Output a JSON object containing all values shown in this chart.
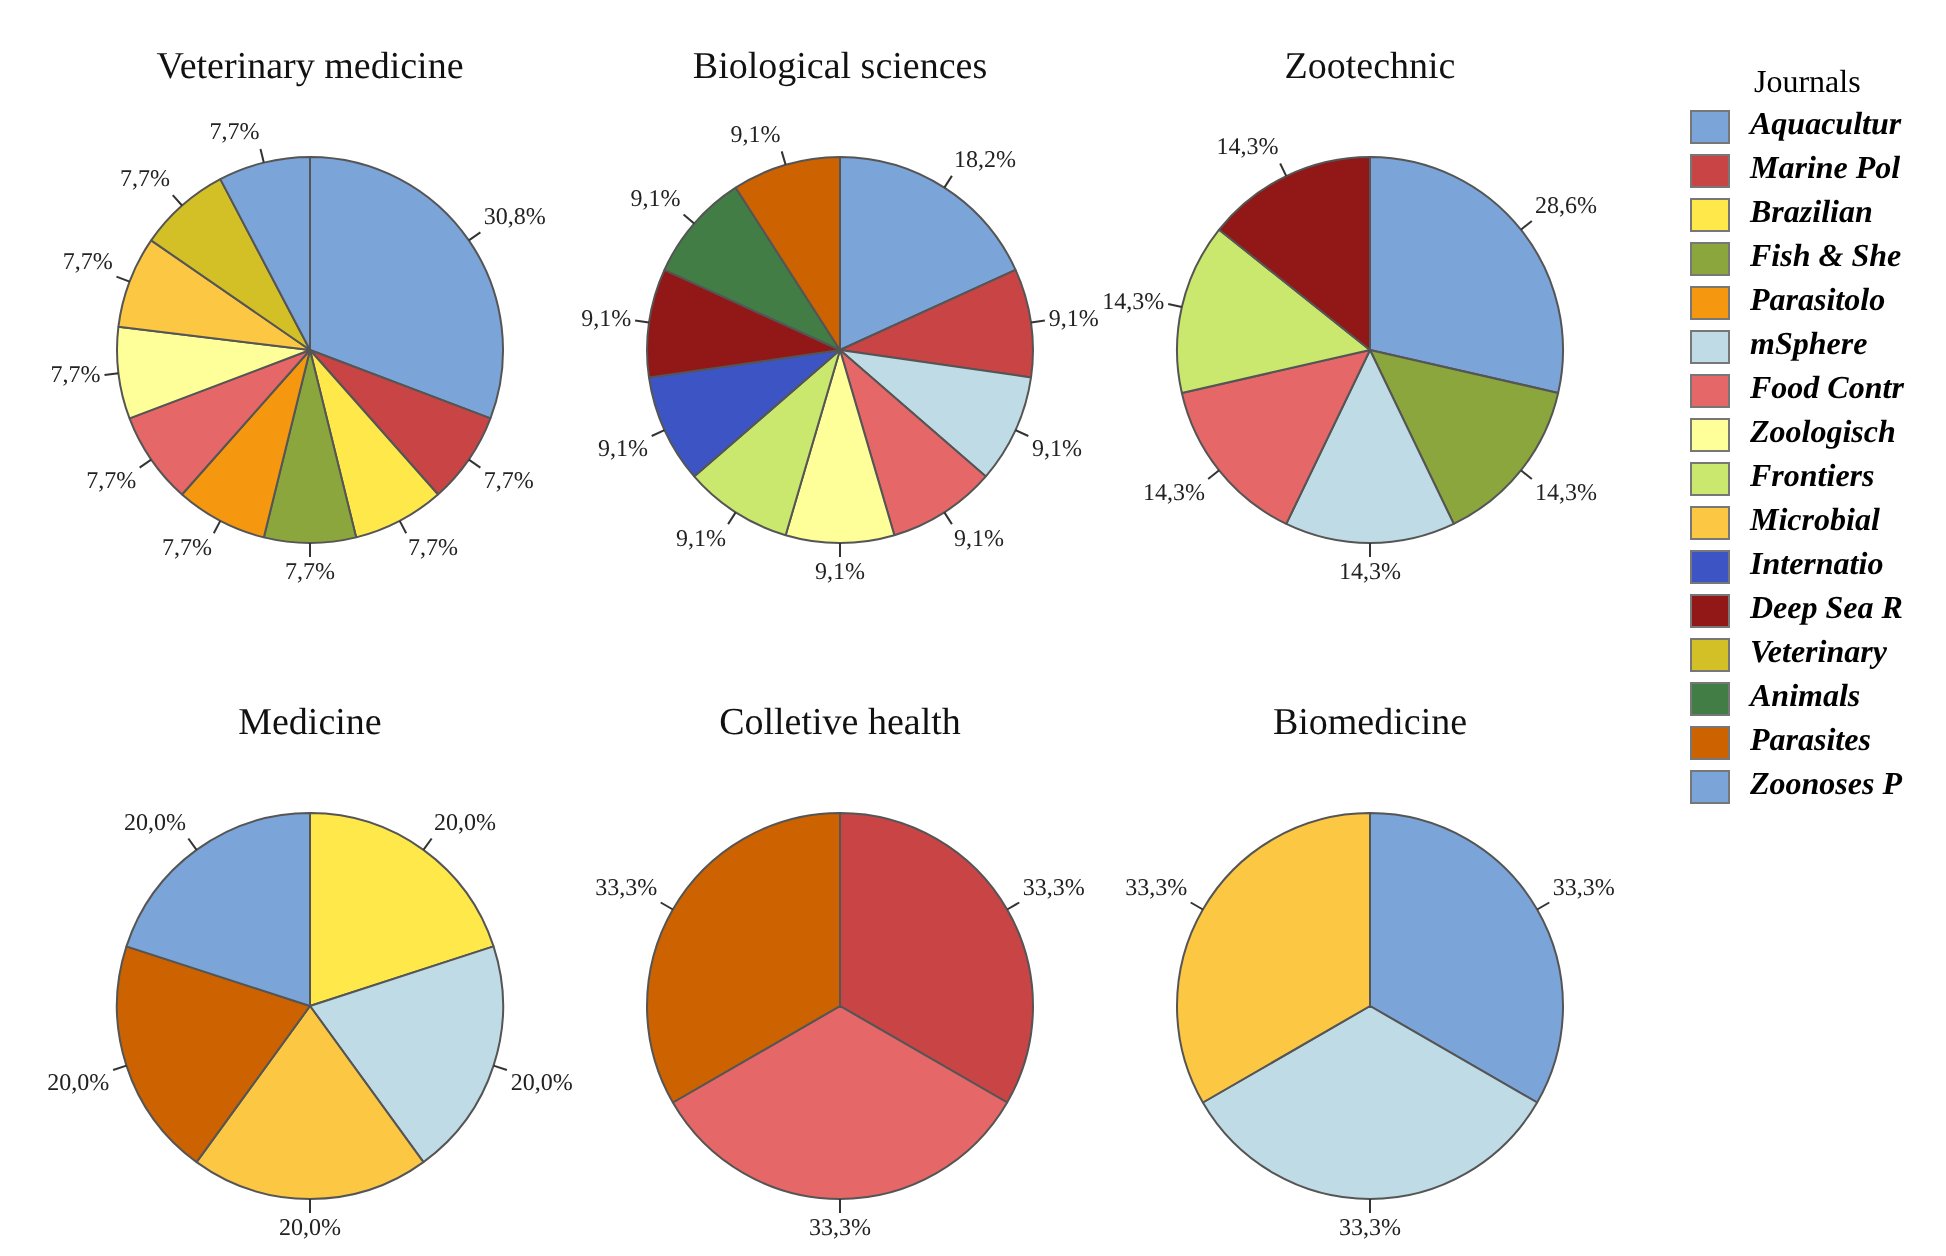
{
  "chart_data": [
    {
      "type": "pie",
      "title": "Veterinary medicine",
      "legend": false,
      "categories": [
        null,
        null,
        null,
        null,
        null,
        null,
        null,
        null,
        null,
        null,
        null,
        null,
        null,
        null,
        null,
        null
      ],
      "colors": [
        "#7ba4d8",
        "#c94545",
        "#ffe94a",
        "#8aa63d",
        "#f5980f",
        "#bedbe6",
        "#e66767",
        "#ffff99",
        "#cbe86e",
        "#fcc844",
        "#3d55c4",
        "#921717",
        "#d3c026",
        "#417d45",
        "#cc6300",
        "#7ba4d8"
      ],
      "values": [
        30.8,
        7.7,
        7.7,
        7.7,
        7.7,
        null,
        7.7,
        7.7,
        null,
        7.7,
        null,
        null,
        7.7,
        null,
        null,
        7.7
      ],
      "value_labels": [
        "30,8%",
        "7,7%",
        "7,7%",
        "7,7%",
        "7,7%",
        null,
        "7,7%",
        "7,7%",
        null,
        "7,7%",
        null,
        null,
        "7,7%",
        null,
        null,
        "7,7%"
      ]
    },
    {
      "type": "pie",
      "title": "Biological sciences",
      "legend": false,
      "categories": [
        null,
        null,
        null,
        null,
        null,
        null,
        null,
        null,
        null,
        null,
        null,
        null,
        null,
        null,
        null,
        null
      ],
      "colors": [
        "#7ba4d8",
        "#c94545",
        "#ffe94a",
        "#8aa63d",
        "#f5980f",
        "#bedbe6",
        "#e66767",
        "#ffff99",
        "#cbe86e",
        "#fcc844",
        "#3d55c4",
        "#921717",
        "#d3c026",
        "#417d45",
        "#cc6300",
        "#7ba4d8"
      ],
      "values": [
        18.2,
        9.1,
        null,
        null,
        null,
        9.1,
        9.1,
        9.1,
        9.1,
        null,
        9.1,
        9.1,
        null,
        9.1,
        9.1,
        null
      ],
      "value_labels": [
        "18,2%",
        "9,1%",
        null,
        null,
        null,
        "9,1%",
        "9,1%",
        "9,1%",
        "9,1%",
        null,
        "9,1%",
        "9,1%",
        null,
        "9,1%",
        "9,1%",
        null
      ]
    },
    {
      "type": "pie",
      "title": "Zootechnic",
      "legend": "right",
      "legend_title": "Journals",
      "categories": [
        "Aquacultur",
        "Marine Pol",
        "Brazilian",
        "Fish & She",
        "Parasitolo",
        "mSphere",
        "Food Contr",
        "Zoologisch",
        "Frontiers",
        "Microbial",
        "Internatio",
        "Deep Sea R",
        "Veterinary",
        "Animals",
        "Parasites",
        "Zoonoses P"
      ],
      "colors": [
        "#7ba4d8",
        "#c94545",
        "#ffe94a",
        "#8aa63d",
        "#f5980f",
        "#bedbe6",
        "#e66767",
        "#ffff99",
        "#cbe86e",
        "#fcc844",
        "#3d55c4",
        "#921717",
        "#d3c026",
        "#417d45",
        "#cc6300",
        "#7ba4d8"
      ],
      "values": [
        28.6,
        null,
        null,
        14.3,
        null,
        14.3,
        14.3,
        null,
        14.3,
        null,
        null,
        14.3,
        null,
        null,
        null,
        null
      ],
      "value_labels": [
        "28,6%",
        null,
        null,
        "14,3%",
        null,
        "14,3%",
        "14,3%",
        null,
        "14,3%",
        null,
        null,
        "14,3%",
        null,
        null,
        null,
        null
      ]
    },
    {
      "type": "pie",
      "title": "Medicine",
      "legend": false,
      "categories": [
        null,
        null,
        null,
        null,
        null,
        null,
        null,
        null,
        null,
        null,
        null,
        null,
        null,
        null,
        null,
        null
      ],
      "colors": [
        "#7ba4d8",
        "#c94545",
        "#ffe94a",
        "#8aa63d",
        "#f5980f",
        "#bedbe6",
        "#e66767",
        "#ffff99",
        "#cbe86e",
        "#fcc844",
        "#3d55c4",
        "#921717",
        "#d3c026",
        "#417d45",
        "#cc6300",
        "#7ba4d8"
      ],
      "values": [
        null,
        null,
        20.0,
        null,
        null,
        20.0,
        null,
        null,
        null,
        20.0,
        null,
        null,
        null,
        null,
        20.0,
        20.0
      ],
      "value_labels": [
        null,
        null,
        "20,0%",
        null,
        null,
        "20,0%",
        null,
        null,
        null,
        "20,0%",
        null,
        null,
        null,
        null,
        "20,0%",
        "20,0%"
      ]
    },
    {
      "type": "pie",
      "title": "Colletive health",
      "legend": false,
      "categories": [
        null,
        null,
        null,
        null,
        null,
        null,
        null,
        null,
        null,
        null,
        null,
        null,
        null,
        null,
        null,
        null
      ],
      "colors": [
        "#7ba4d8",
        "#c94545",
        "#ffe94a",
        "#8aa63d",
        "#f5980f",
        "#bedbe6",
        "#e66767",
        "#ffff99",
        "#cbe86e",
        "#fcc844",
        "#3d55c4",
        "#921717",
        "#d3c026",
        "#417d45",
        "#cc6300",
        "#7ba4d8"
      ],
      "values": [
        null,
        33.3,
        null,
        null,
        null,
        null,
        33.3,
        null,
        null,
        null,
        null,
        null,
        null,
        null,
        33.3,
        null
      ],
      "value_labels": [
        null,
        "33,3%",
        null,
        null,
        null,
        null,
        "33,3%",
        null,
        null,
        null,
        null,
        null,
        null,
        null,
        "33,3%",
        null
      ]
    },
    {
      "type": "pie",
      "title": "Biomedicine",
      "legend": false,
      "categories": [
        null,
        null,
        null,
        null,
        null,
        null,
        null,
        null,
        null,
        null,
        null,
        null,
        null,
        null,
        null,
        null
      ],
      "colors": [
        "#7ba4d8",
        "#c94545",
        "#ffe94a",
        "#8aa63d",
        "#f5980f",
        "#bedbe6",
        "#e66767",
        "#ffff99",
        "#cbe86e",
        "#fcc844",
        "#3d55c4",
        "#921717",
        "#d3c026",
        "#417d45",
        "#cc6300",
        "#7ba4d8"
      ],
      "values": [
        33.3,
        null,
        null,
        null,
        null,
        33.3,
        null,
        null,
        null,
        33.3,
        null,
        null,
        null,
        null,
        null,
        null
      ],
      "value_labels": [
        "33,3%",
        null,
        null,
        null,
        null,
        "33,3%",
        null,
        null,
        null,
        "33,3%",
        null,
        null,
        null,
        null,
        null,
        null
      ]
    }
  ]
}
